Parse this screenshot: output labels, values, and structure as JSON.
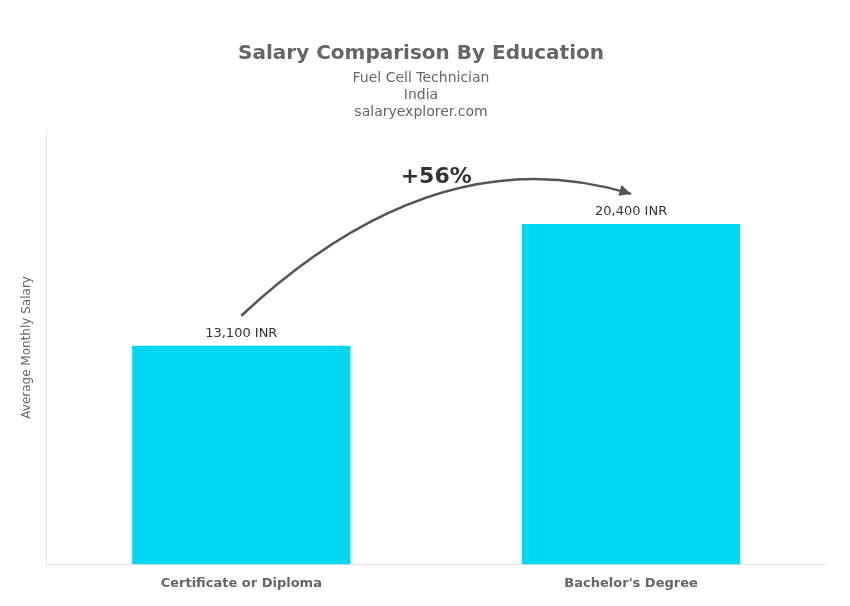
{
  "chart_data": {
    "type": "bar",
    "title": "Salary Comparison By Education",
    "subtitle": "Fuel Cell Technician",
    "annotations": [
      {
        "text": "India"
      },
      {
        "text": "salaryexplorer.com"
      },
      {
        "text": "+56%",
        "from": "Certificate or Diploma",
        "to": "Bachelor's Degree"
      }
    ],
    "ylabel": "Average Monthly Salary",
    "categories": [
      "Certificate or Diploma",
      "Bachelor's Degree"
    ],
    "values": [
      13100,
      20400
    ],
    "value_labels": [
      "13,100 INR",
      "20,400 INR"
    ],
    "data_labels": true,
    "color": "#00d8f0",
    "ylim": [
      0,
      26000
    ],
    "tick_labels": "x",
    "grid": false
  }
}
